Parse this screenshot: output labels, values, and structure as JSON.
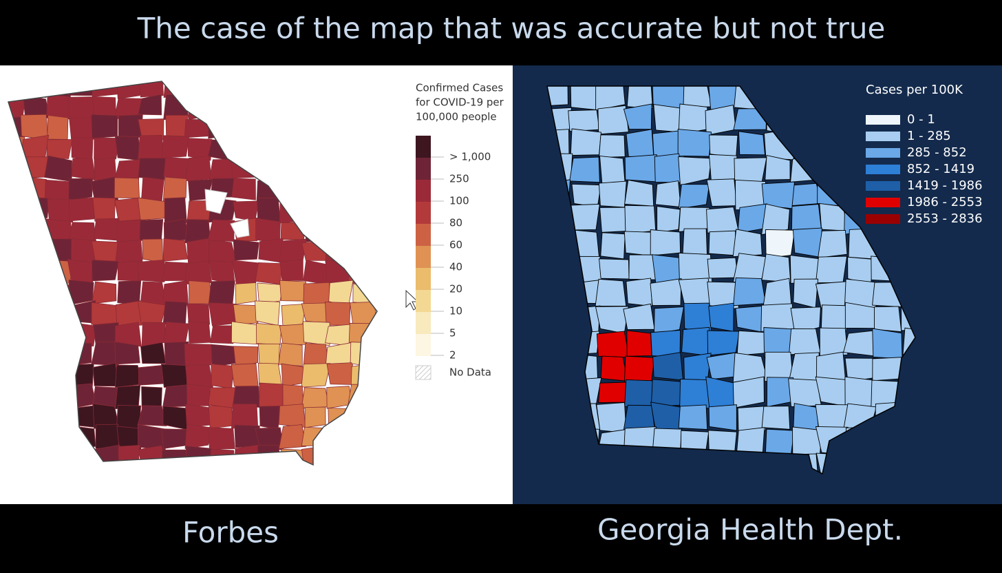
{
  "title": "The case of the map that was accurate but not true",
  "maps": [
    {
      "caption": "Forbes",
      "legend": {
        "title": [
          "Confirmed Cases",
          "for COVID-19 per",
          "100,000 people"
        ],
        "items": [
          {
            "label": "> 1,000",
            "color": "#3d1620"
          },
          {
            "label": "250",
            "color": "#6e2436"
          },
          {
            "label": "100",
            "color": "#9b2a38"
          },
          {
            "label": "80",
            "color": "#b33a3a"
          },
          {
            "label": "60",
            "color": "#cc6243"
          },
          {
            "label": "40",
            "color": "#df9253"
          },
          {
            "label": "20",
            "color": "#eabc6c"
          },
          {
            "label": "10",
            "color": "#f3d893"
          },
          {
            "label": "5",
            "color": "#f8eabd"
          },
          {
            "label": "2",
            "color": "#fcf6e2"
          }
        ],
        "no_data": "No Data"
      }
    },
    {
      "caption": "Georgia Health Dept.",
      "legend": {
        "title": [
          "Cases per 100K"
        ],
        "items": [
          {
            "label": "0 - 1",
            "color": "#eef5fb"
          },
          {
            "label": "1 - 285",
            "color": "#a8cdf0"
          },
          {
            "label": "285 - 852",
            "color": "#6aa8e8"
          },
          {
            "label": "852 - 1419",
            "color": "#2e7fd6"
          },
          {
            "label": "1419 - 1986",
            "color": "#1e5fa8"
          },
          {
            "label": "1986 - 2553",
            "color": "#e00000"
          },
          {
            "label": "2553 - 2836",
            "color": "#9a0000"
          }
        ]
      }
    }
  ]
}
